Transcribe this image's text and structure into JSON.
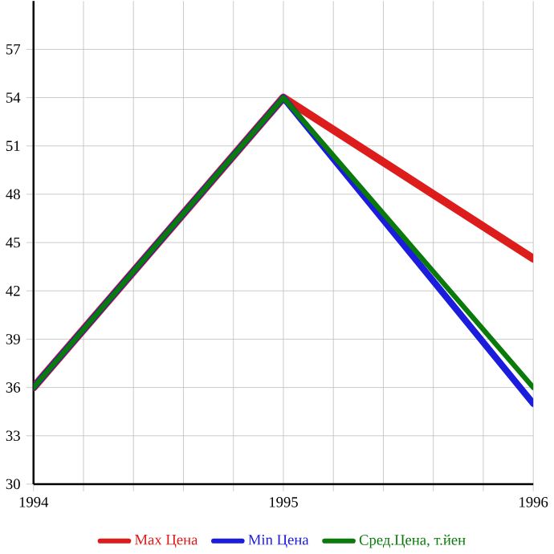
{
  "chart_data": {
    "type": "line",
    "x": [
      1994,
      1995,
      1996
    ],
    "series": [
      {
        "name": "Max Цена",
        "color": "#dd1c1c",
        "values": [
          36,
          54,
          44
        ]
      },
      {
        "name": "Min Цена",
        "color": "#1c1cdd",
        "values": [
          36,
          54,
          35
        ]
      },
      {
        "name": "Сред.Цена, т.йен",
        "color": "#0a7a0a",
        "values": [
          36,
          54,
          36
        ]
      }
    ],
    "xlim": [
      1994,
      1996
    ],
    "xticks": [
      1994,
      {
        "value": 1994.2,
        "label": null
      },
      {
        "value": 1994.4,
        "label": null
      },
      {
        "value": 1994.6,
        "label": null
      },
      {
        "value": 1994.8,
        "label": null
      },
      1995,
      {
        "value": 1995.2,
        "label": null
      },
      {
        "value": 1995.4,
        "label": null
      },
      {
        "value": 1995.6,
        "label": null
      },
      {
        "value": 1995.8,
        "label": null
      },
      1996
    ],
    "ylim": [
      30,
      60
    ],
    "yticks": [
      30,
      33,
      36,
      39,
      42,
      45,
      48,
      51,
      54,
      57
    ],
    "grid": true,
    "legend": "bottom",
    "marker": "none",
    "line_style": "solid"
  }
}
